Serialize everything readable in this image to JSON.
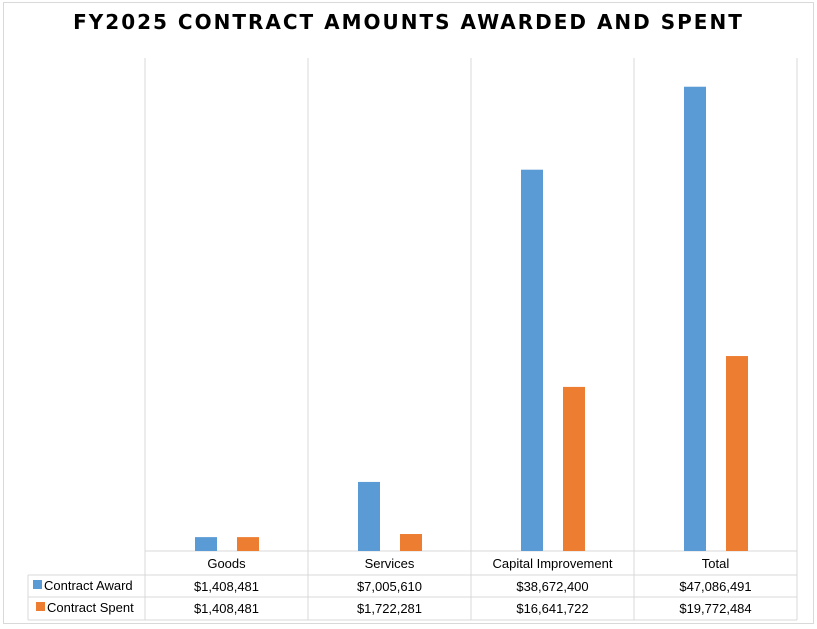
{
  "chart_data": {
    "type": "bar",
    "title": "FY2025 CONTRACT AMOUNTS AWARDED AND SPENT",
    "categories": [
      "Goods",
      "Services",
      "Capital Improvement",
      "Total"
    ],
    "series": [
      {
        "name": "Contract Award",
        "color": "#5b9bd5",
        "values": [
          1408481,
          7005610,
          38672400,
          47086491
        ],
        "labels": [
          "$1,408,481",
          "$7,005,610",
          "$38,672,400",
          "$47,086,491"
        ]
      },
      {
        "name": "Contract Spent",
        "color": "#ed7d31",
        "values": [
          1408481,
          1722281,
          16641722,
          19772484
        ],
        "labels": [
          "$1,408,481",
          "$1,722,281",
          "$16,641,722",
          "$19,772,484"
        ]
      }
    ],
    "ylim": [
      0,
      50000000
    ],
    "grid": "vertical category separators",
    "legend": "data table"
  }
}
